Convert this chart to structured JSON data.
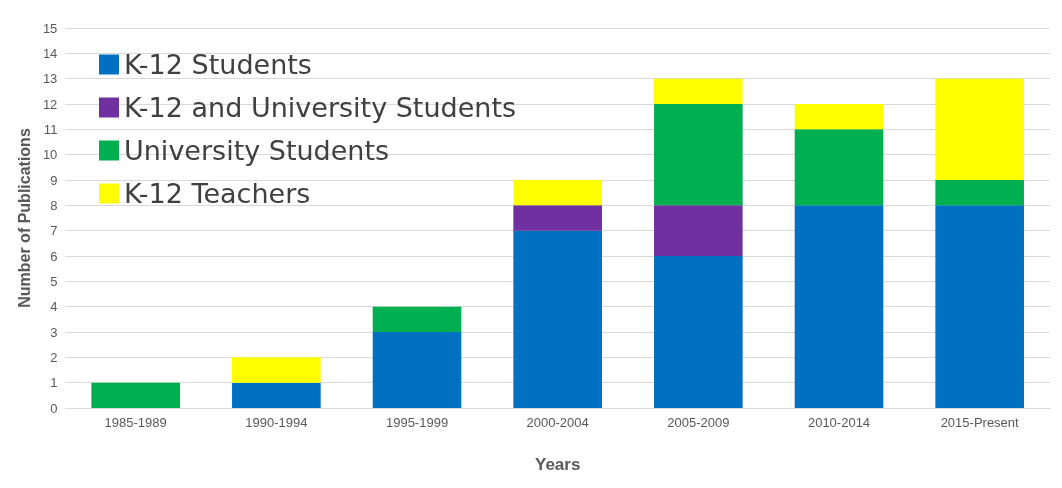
{
  "chart_data": {
    "type": "bar",
    "stacked": true,
    "xlabel": "Years",
    "ylabel": "Number of Publications",
    "categories": [
      "1985-1989",
      "1990-1994",
      "1995-1999",
      "2000-2004",
      "2005-2009",
      "2010-2014",
      "2015-Present"
    ],
    "series": [
      {
        "name": "K-12 Students",
        "color": "#0070c0",
        "values": [
          0,
          1,
          3,
          7,
          6,
          8,
          8
        ]
      },
      {
        "name": "K-12 and University Students",
        "color": "#7030a0",
        "values": [
          0,
          0,
          0,
          1,
          2,
          0,
          0
        ]
      },
      {
        "name": "University Students",
        "color": "#00b050",
        "values": [
          1,
          0,
          1,
          0,
          4,
          3,
          1
        ]
      },
      {
        "name": "K-12 Teachers",
        "color": "#ffff00",
        "values": [
          0,
          1,
          0,
          1,
          1,
          1,
          4
        ]
      }
    ],
    "ylim": [
      0,
      15
    ],
    "yticks": [
      0,
      1,
      2,
      3,
      4,
      5,
      6,
      7,
      8,
      9,
      10,
      11,
      12,
      13,
      14,
      15
    ],
    "grid": "y",
    "legend": "top left"
  }
}
